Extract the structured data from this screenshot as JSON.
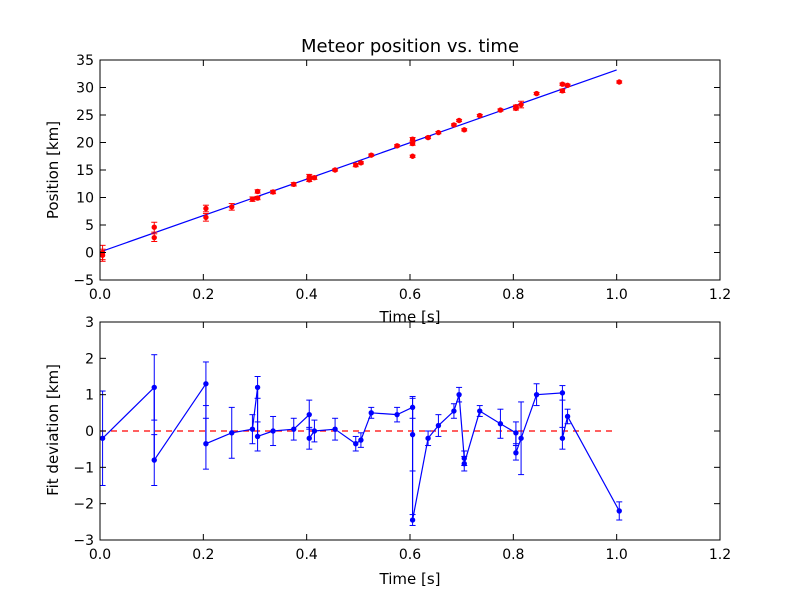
{
  "chart_data": [
    {
      "type": "scatter",
      "title": "Meteor position vs. time",
      "xlabel": "Time [s]",
      "ylabel": "Position [km]",
      "xlim": [
        0,
        1.2
      ],
      "ylim": [
        -5,
        35
      ],
      "xticks": [
        "0.0",
        "0.2",
        "0.4",
        "0.6",
        "0.8",
        "1.0",
        "1.2"
      ],
      "yticks": [
        "-5",
        "0",
        "5",
        "10",
        "15",
        "20",
        "25",
        "30",
        "35"
      ],
      "grid": false,
      "colors": {
        "points": "#ff0000",
        "fit": "#0000ff"
      },
      "fit_line": {
        "x": [
          0.0,
          1.0
        ],
        "y": [
          0.1,
          33.2
        ]
      },
      "series": [
        {
          "x": [
            0.005,
            0.005,
            0.105,
            0.105,
            0.205,
            0.205,
            0.255,
            0.295,
            0.305,
            0.305,
            0.335,
            0.375,
            0.405,
            0.405,
            0.415,
            0.455,
            0.495,
            0.505,
            0.525,
            0.575,
            0.605,
            0.605,
            0.605,
            0.635,
            0.655,
            0.685,
            0.695,
            0.705,
            0.735,
            0.775,
            0.805,
            0.805,
            0.815,
            0.845,
            0.895,
            0.895,
            0.905,
            1.005
          ],
          "y": [
            0.0,
            -0.5,
            4.6,
            2.7,
            8.0,
            6.4,
            8.3,
            9.7,
            9.9,
            11.1,
            11.0,
            12.4,
            13.8,
            13.2,
            13.6,
            15.0,
            15.9,
            16.3,
            17.7,
            19.4,
            20.6,
            19.8,
            17.5,
            20.9,
            21.8,
            23.2,
            24.0,
            22.3,
            24.9,
            25.9,
            26.2,
            26.5,
            26.9,
            28.9,
            29.4,
            30.6,
            30.4,
            31.0
          ],
          "err": [
            1.3,
            1.1,
            0.9,
            0.7,
            0.6,
            0.7,
            0.6,
            0.4,
            0.3,
            0.3,
            0.3,
            0.3,
            0.4,
            0.3,
            0.3,
            0.2,
            0.3,
            0.2,
            0.2,
            0.2,
            0.3,
            0.3,
            0.2,
            0.2,
            0.2,
            0.2,
            0.2,
            0.2,
            0.2,
            0.2,
            0.3,
            0.3,
            0.6,
            0.2,
            0.3,
            0.2,
            0.2,
            0.2
          ]
        }
      ]
    },
    {
      "type": "line",
      "title": "",
      "xlabel": "Time [s]",
      "ylabel": "Fit deviation [km]",
      "xlim": [
        0,
        1.2
      ],
      "ylim": [
        -3,
        3
      ],
      "xticks": [
        "0.0",
        "0.2",
        "0.4",
        "0.6",
        "0.8",
        "1.0",
        "1.2"
      ],
      "yticks": [
        "-3",
        "-2",
        "-1",
        "0",
        "1",
        "2",
        "3"
      ],
      "grid": false,
      "colors": {
        "line": "#0000ff",
        "reference": "#ff0000"
      },
      "reference_line": {
        "x": [
          0.0,
          1.0
        ],
        "y": [
          0,
          0
        ]
      },
      "series": [
        {
          "x": [
            0.005,
            0.105,
            0.105,
            0.205,
            0.205,
            0.255,
            0.295,
            0.305,
            0.305,
            0.335,
            0.375,
            0.405,
            0.405,
            0.415,
            0.455,
            0.495,
            0.505,
            0.525,
            0.575,
            0.605,
            0.605,
            0.605,
            0.635,
            0.655,
            0.685,
            0.695,
            0.705,
            0.705,
            0.735,
            0.775,
            0.805,
            0.805,
            0.815,
            0.845,
            0.895,
            0.895,
            0.905,
            1.005
          ],
          "y": [
            -0.2,
            1.2,
            -0.8,
            1.3,
            -0.35,
            -0.05,
            0.05,
            1.2,
            -0.15,
            0.0,
            0.05,
            0.45,
            -0.2,
            0.0,
            0.05,
            -0.35,
            -0.25,
            0.5,
            0.45,
            0.65,
            -0.1,
            -2.45,
            -0.2,
            0.15,
            0.55,
            1.0,
            -0.75,
            -0.9,
            0.55,
            0.2,
            -0.05,
            -0.6,
            -0.2,
            1.0,
            1.05,
            -0.2,
            0.4,
            -2.2
          ],
          "err": [
            1.3,
            0.9,
            0.7,
            0.6,
            0.7,
            0.7,
            0.4,
            0.3,
            0.4,
            0.4,
            0.3,
            0.4,
            0.3,
            0.3,
            0.3,
            0.2,
            0.2,
            0.15,
            0.2,
            0.3,
            1.0,
            0.15,
            0.2,
            0.3,
            0.2,
            0.2,
            0.2,
            0.2,
            0.15,
            0.4,
            0.3,
            0.2,
            1.0,
            0.3,
            0.2,
            0.3,
            0.2,
            0.25
          ]
        }
      ]
    }
  ]
}
